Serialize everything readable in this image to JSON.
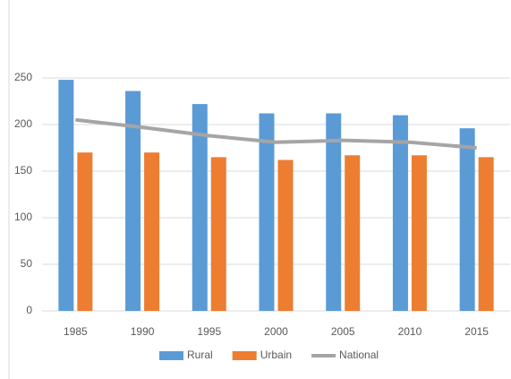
{
  "chart_data": {
    "type": "bar",
    "categories": [
      "1985",
      "1990",
      "1995",
      "2000",
      "2005",
      "2010",
      "2015"
    ],
    "series": [
      {
        "name": "Rural",
        "color": "#5b9bd5",
        "type": "bar",
        "values": [
          248,
          236,
          222,
          212,
          212,
          210,
          196
        ]
      },
      {
        "name": "Urbain",
        "color": "#ed7d31",
        "type": "bar",
        "values": [
          170,
          170,
          165,
          162,
          167,
          167,
          165
        ]
      },
      {
        "name": "National",
        "color": "#a5a5a5",
        "type": "line",
        "values": [
          205,
          197,
          188,
          181,
          183,
          181,
          175
        ]
      }
    ],
    "ylim": [
      0,
      300
    ],
    "yticks": [
      0,
      50,
      100,
      150,
      200,
      250
    ],
    "grid": true,
    "legend": "bottom"
  }
}
